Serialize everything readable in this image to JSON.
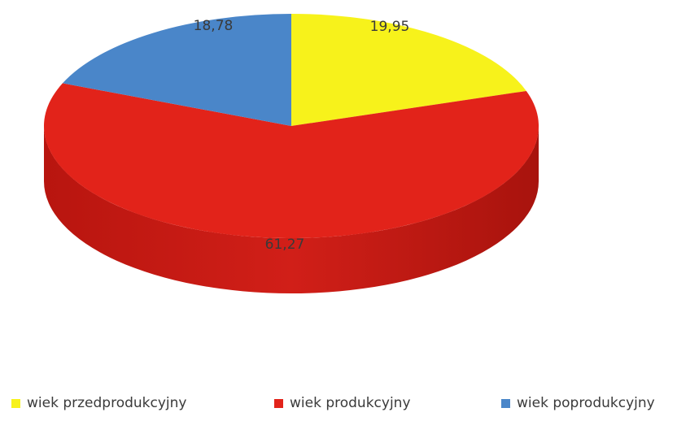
{
  "chart_data": {
    "type": "pie",
    "style": "3d",
    "title": "",
    "categories": [
      "wiek przedprodukcyjny",
      "wiek produkcyjny",
      "wiek poprodukcyjny"
    ],
    "values": [
      19.95,
      61.27,
      18.78
    ],
    "value_labels": [
      "19,95",
      "61,27",
      "18,78"
    ],
    "colors": [
      "#f7f21b",
      "#e2231a",
      "#4a86c9"
    ],
    "legend_position": "bottom"
  },
  "legend": {
    "items": [
      {
        "label": "wiek przedprodukcyjny",
        "color": "#f7f21b"
      },
      {
        "label": "wiek produkcyjny",
        "color": "#e2231a"
      },
      {
        "label": "wiek poprodukcyjny",
        "color": "#4a86c9"
      }
    ]
  }
}
